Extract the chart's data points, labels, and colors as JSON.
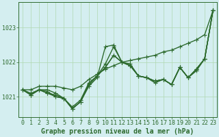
{
  "hours": [
    0,
    1,
    2,
    3,
    4,
    5,
    6,
    7,
    8,
    9,
    10,
    11,
    12,
    13,
    14,
    15,
    16,
    17,
    18,
    19,
    20,
    21,
    22,
    23
  ],
  "series": [
    [
      1021.2,
      1021.2,
      1021.3,
      1021.3,
      1021.3,
      1021.25,
      1021.2,
      1021.3,
      1021.5,
      1021.65,
      1021.8,
      1021.9,
      1022.0,
      1022.05,
      1022.1,
      1022.15,
      1022.2,
      1022.3,
      1022.35,
      1022.45,
      1022.55,
      1022.65,
      1022.8,
      1023.5
    ],
    [
      1021.2,
      1021.05,
      1021.2,
      1021.1,
      1021.0,
      1020.95,
      1020.65,
      1020.85,
      1021.3,
      1021.55,
      1022.45,
      1022.5,
      1022.0,
      1021.95,
      1021.6,
      1021.55,
      1021.4,
      1021.5,
      1021.35,
      1021.85,
      1021.55,
      1021.75,
      1022.1,
      1023.5
    ],
    [
      1021.2,
      1021.05,
      1021.2,
      1021.15,
      1021.0,
      1020.95,
      1020.65,
      1020.85,
      1021.35,
      1021.6,
      1021.95,
      1022.45,
      1022.0,
      1021.9,
      1021.6,
      1021.55,
      1021.45,
      1021.5,
      1021.35,
      1021.85,
      1021.55,
      1021.8,
      1022.1,
      1023.5
    ],
    [
      1021.2,
      1021.05,
      1021.2,
      1021.1,
      1021.05,
      1020.95,
      1020.65,
      1020.85,
      1021.35,
      1021.6,
      1021.85,
      1022.2,
      1022.0,
      1021.9,
      1021.6,
      1021.55,
      1021.45,
      1021.5,
      1021.35,
      1021.85,
      1021.55,
      1021.8,
      1022.1,
      1023.5
    ],
    [
      1021.2,
      1021.1,
      1021.2,
      1021.2,
      1021.1,
      1020.95,
      1020.7,
      1020.9,
      1021.4,
      1021.6,
      1021.85,
      1022.2,
      1022.0,
      1021.9,
      1021.6,
      1021.55,
      1021.45,
      1021.5,
      1021.35,
      1021.85,
      1021.55,
      1021.8,
      1022.1,
      1023.5
    ]
  ],
  "line_colors": [
    "#2d6a2d",
    "#2d6a2d",
    "#2d6a2d",
    "#2d6a2d",
    "#2d6a2d"
  ],
  "line_widths": [
    1.0,
    1.0,
    1.0,
    1.0,
    1.0
  ],
  "marker": "+",
  "marker_size": 4,
  "marker_edge_width": 0.8,
  "ylim": [
    1020.4,
    1023.75
  ],
  "yticks": [
    1021.0,
    1022.0,
    1023.0
  ],
  "xlim": [
    -0.5,
    23.5
  ],
  "grid_color": "#b0d8b0",
  "bg_color": "#d4eef0",
  "line_color": "#2d6a2d",
  "tick_color": "#2d6a2d",
  "label_fontsize": 7,
  "tick_fontsize": 6,
  "bottom_label": "Graphe pression niveau de la mer (hPa)"
}
